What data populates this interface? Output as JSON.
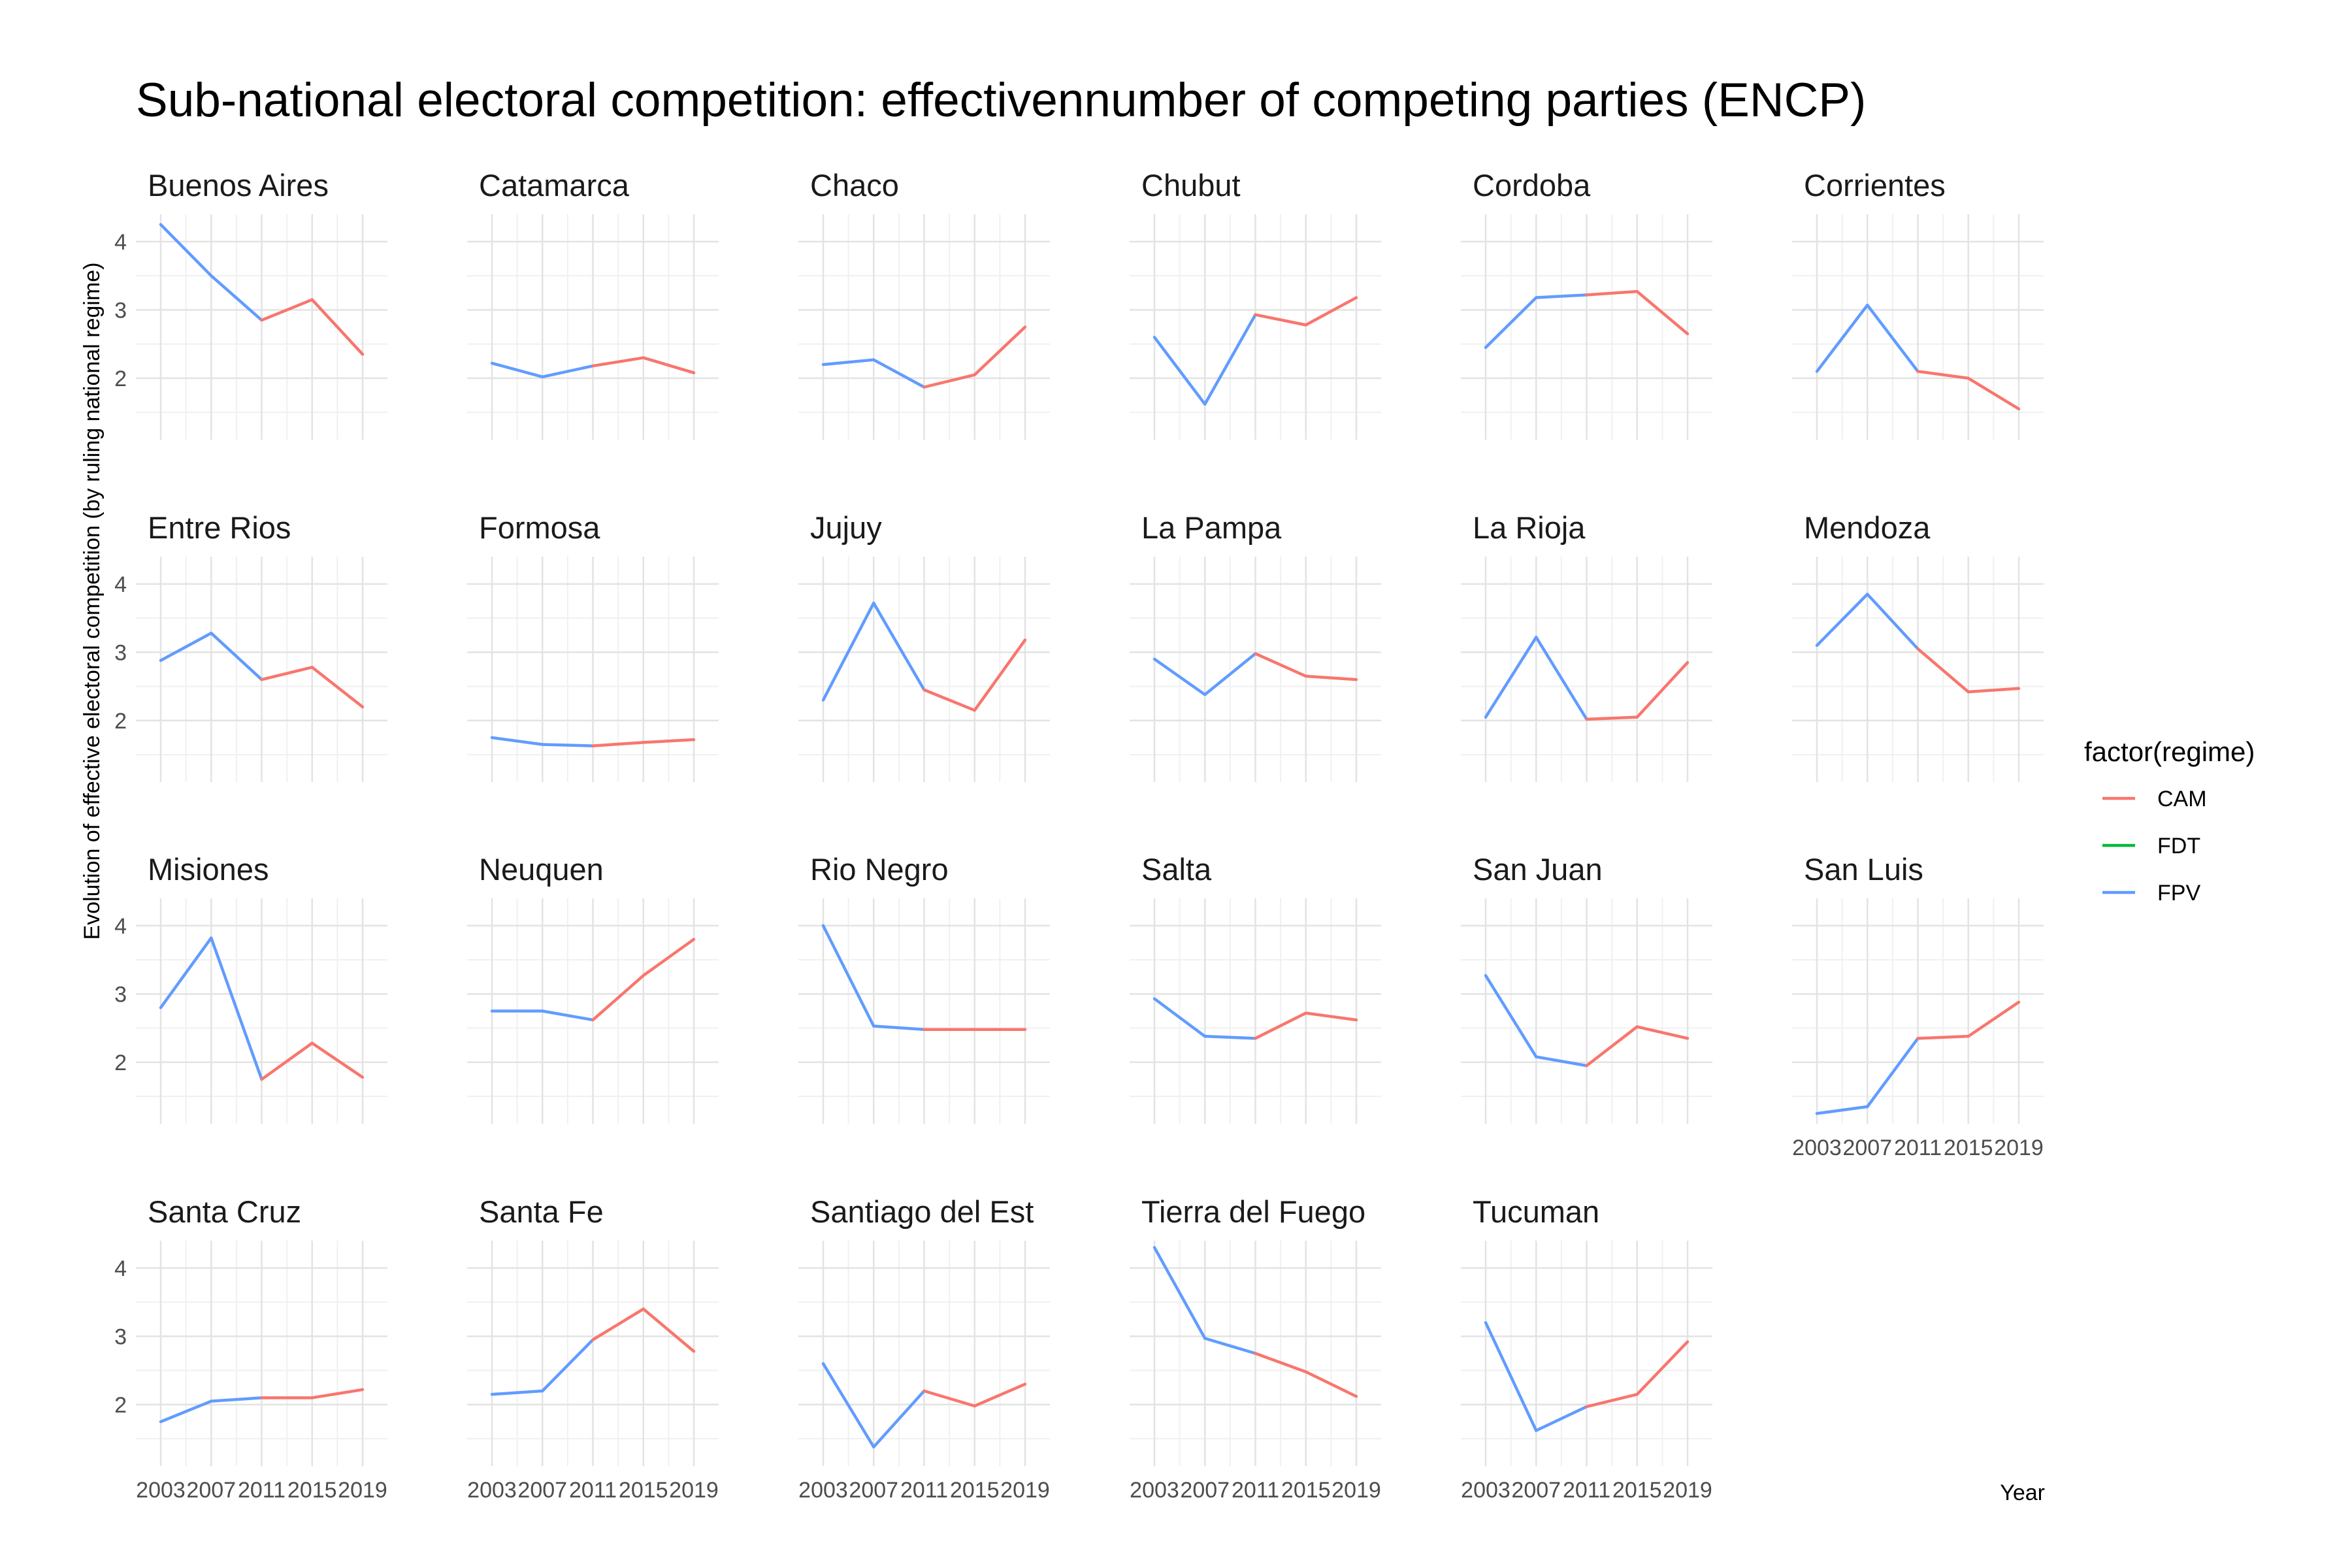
{
  "chart_data": {
    "type": "line",
    "title": "Sub-national electoral competition: effectivennumber of competing parties (ENCP)",
    "xlabel": "Year",
    "ylabel": "Evolution of effective electoral competition (by ruling national regime)",
    "x": [
      2003,
      2007,
      2011,
      2015,
      2019
    ],
    "x_ticks": [
      "2003",
      "2007",
      "2011",
      "2015",
      "2019"
    ],
    "y_ticks": [
      "2",
      "3",
      "4"
    ],
    "ylim": [
      1.1,
      4.4
    ],
    "grid": true,
    "legend": {
      "title": "factor(regime)",
      "position": "right",
      "entries": [
        {
          "label": "CAM",
          "color": "#F8766D"
        },
        {
          "label": "FDT",
          "color": "#00BA38"
        },
        {
          "label": "FPV",
          "color": "#619CFF"
        }
      ]
    },
    "regime_by_year": [
      "FPV",
      "FPV",
      "FPV",
      "CAM",
      "CAM"
    ],
    "facets": [
      {
        "name": "Buenos Aires",
        "values": [
          4.25,
          3.5,
          2.85,
          3.15,
          2.35
        ]
      },
      {
        "name": "Catamarca",
        "values": [
          2.22,
          2.02,
          2.18,
          2.3,
          2.08
        ]
      },
      {
        "name": "Chaco",
        "values": [
          2.2,
          2.27,
          1.87,
          2.05,
          2.75
        ]
      },
      {
        "name": "Chubut",
        "values": [
          2.6,
          1.62,
          2.93,
          2.78,
          3.18
        ]
      },
      {
        "name": "Cordoba",
        "values": [
          2.45,
          3.18,
          3.22,
          3.27,
          2.65
        ]
      },
      {
        "name": "Corrientes",
        "values": [
          2.1,
          3.07,
          2.1,
          2.0,
          1.55
        ]
      },
      {
        "name": "Entre Rios",
        "values": [
          2.88,
          3.28,
          2.6,
          2.78,
          2.2
        ]
      },
      {
        "name": "Formosa",
        "values": [
          1.75,
          1.65,
          1.63,
          1.68,
          1.72
        ]
      },
      {
        "name": "Jujuy",
        "values": [
          2.3,
          3.72,
          2.45,
          2.15,
          3.18
        ]
      },
      {
        "name": "La Pampa",
        "values": [
          2.9,
          2.38,
          2.98,
          2.65,
          2.6
        ]
      },
      {
        "name": "La Rioja",
        "values": [
          2.05,
          3.22,
          2.02,
          2.05,
          2.85
        ]
      },
      {
        "name": "Mendoza",
        "values": [
          3.1,
          3.85,
          3.05,
          2.42,
          2.47
        ]
      },
      {
        "name": "Misiones",
        "values": [
          2.8,
          3.82,
          1.75,
          2.28,
          1.78
        ]
      },
      {
        "name": "Neuquen",
        "values": [
          2.75,
          2.75,
          2.62,
          3.27,
          3.8
        ]
      },
      {
        "name": "Rio Negro",
        "values": [
          4.0,
          2.53,
          2.48,
          2.48,
          2.48
        ]
      },
      {
        "name": "Salta",
        "values": [
          2.93,
          2.38,
          2.35,
          2.72,
          2.62
        ]
      },
      {
        "name": "San Juan",
        "values": [
          3.27,
          2.08,
          1.95,
          2.52,
          2.35
        ]
      },
      {
        "name": "San Luis",
        "values": [
          1.25,
          1.35,
          2.35,
          2.38,
          2.88
        ]
      },
      {
        "name": "Santa Cruz",
        "values": [
          1.75,
          2.05,
          2.1,
          2.1,
          2.22
        ]
      },
      {
        "name": "Santa Fe",
        "values": [
          2.15,
          2.2,
          2.95,
          3.4,
          2.78
        ]
      },
      {
        "name": "Santiago del Est",
        "values": [
          2.6,
          1.38,
          2.2,
          1.98,
          2.3
        ]
      },
      {
        "name": "Tierra del Fuego",
        "values": [
          4.3,
          2.97,
          2.75,
          2.48,
          2.12
        ]
      },
      {
        "name": "Tucuman",
        "values": [
          3.2,
          1.62,
          1.97,
          2.15,
          2.92
        ]
      }
    ]
  }
}
